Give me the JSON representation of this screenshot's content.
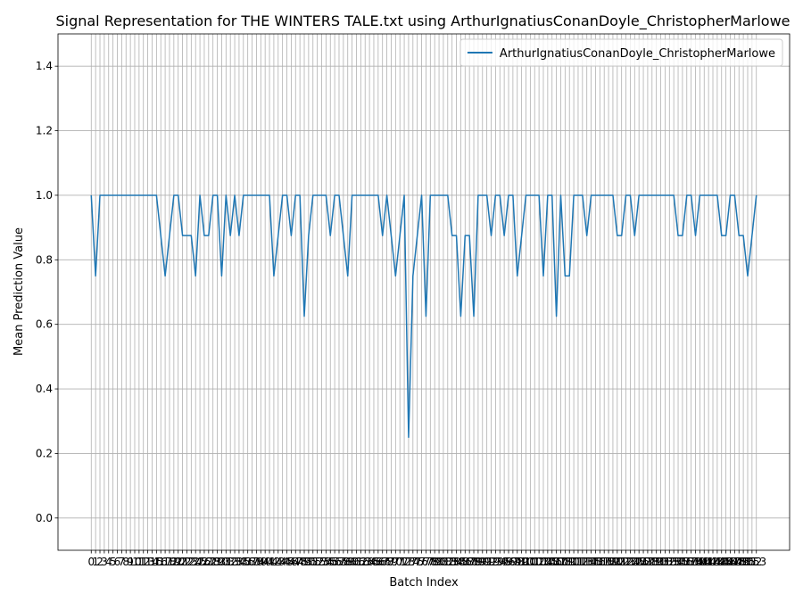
{
  "chart_data": {
    "type": "line",
    "title": "Signal Representation for THE WINTERS TALE.txt using ArthurIgnatiusConanDoyle_ChristopherMarlowe",
    "xlabel": "Batch Index",
    "ylabel": "Mean Prediction Value",
    "x": [
      0,
      1,
      2,
      3,
      4,
      5,
      6,
      7,
      8,
      9,
      10,
      11,
      12,
      13,
      14,
      15,
      16,
      17,
      18,
      19,
      20,
      21,
      22,
      23,
      24,
      25,
      26,
      27,
      28,
      29,
      30,
      31,
      32,
      33,
      34,
      35,
      36,
      37,
      38,
      39,
      40,
      41,
      42,
      43,
      44,
      45,
      46,
      47,
      48,
      49,
      50,
      51,
      52,
      53,
      54,
      55,
      56,
      57,
      58,
      59,
      60,
      61,
      62,
      63,
      64,
      65,
      66,
      67,
      68,
      69,
      70,
      71,
      72,
      73,
      74,
      75,
      76,
      77,
      78,
      79,
      80,
      81,
      82,
      83,
      84,
      85,
      86,
      87,
      88,
      89,
      90,
      91,
      92,
      93,
      94,
      95,
      96,
      97,
      98,
      99,
      100,
      101,
      102,
      103,
      104,
      105,
      106,
      107,
      108,
      109,
      110,
      111,
      112,
      113,
      114,
      115,
      116,
      117,
      118,
      119,
      120,
      121,
      122,
      123,
      124,
      125,
      126,
      127,
      128,
      129,
      130,
      131,
      132,
      133,
      134,
      135,
      136,
      137,
      138,
      139,
      140,
      141,
      142,
      143,
      144,
      145,
      146,
      147,
      148,
      149,
      150,
      151,
      152,
      153
    ],
    "series": [
      {
        "name": "ArthurIgnatiusConanDoyle_ChristopherMarlowe",
        "color": "#1f77b4",
        "values": [
          1,
          0.75,
          1,
          1,
          1,
          1,
          1,
          1,
          1,
          1,
          1,
          1,
          1,
          1,
          1,
          1,
          0.875,
          0.75,
          0.875,
          1,
          1,
          0.875,
          0.875,
          0.875,
          0.75,
          1,
          0.875,
          0.875,
          1,
          1,
          0.75,
          1,
          0.875,
          1,
          0.875,
          1,
          1,
          1,
          1,
          1,
          1,
          1,
          0.75,
          0.875,
          1,
          1,
          0.875,
          1,
          1,
          0.625,
          0.875,
          1,
          1,
          1,
          1,
          0.875,
          1,
          1,
          0.875,
          0.75,
          1,
          1,
          1,
          1,
          1,
          1,
          1,
          0.875,
          1,
          0.875,
          0.75,
          0.875,
          1,
          0.25,
          0.75,
          0.875,
          1,
          0.625,
          1,
          1,
          1,
          1,
          1,
          0.875,
          0.875,
          0.625,
          0.875,
          0.875,
          0.625,
          1,
          1,
          1,
          0.875,
          1,
          1,
          0.875,
          1,
          1,
          0.75,
          0.875,
          1,
          1,
          1,
          1,
          0.75,
          1,
          1,
          0.625,
          1,
          0.75,
          0.75,
          1,
          1,
          1,
          0.875,
          1,
          1,
          1,
          1,
          1,
          1,
          0.875,
          0.875,
          1,
          1,
          0.875,
          1,
          1,
          1,
          1,
          1,
          1,
          1,
          1,
          1,
          0.875,
          0.875,
          1,
          1,
          0.875,
          1,
          1,
          1,
          1,
          1,
          0.875,
          0.875,
          1,
          1,
          0.875,
          0.875,
          0.75,
          0.875,
          1
        ]
      }
    ],
    "xlim": [
      -7.65,
      160.65
    ],
    "xticks": [
      0,
      1,
      2,
      3,
      4,
      5,
      6,
      7,
      8,
      9,
      10,
      11,
      12,
      13,
      14,
      15,
      16,
      17,
      18,
      19,
      20,
      21,
      22,
      23,
      24,
      25,
      26,
      27,
      28,
      29,
      30,
      31,
      32,
      33,
      34,
      35,
      36,
      37,
      38,
      39,
      40,
      41,
      42,
      43,
      44,
      45,
      46,
      47,
      48,
      49,
      50,
      51,
      52,
      53,
      54,
      55,
      56,
      57,
      58,
      59,
      60,
      61,
      62,
      63,
      64,
      65,
      66,
      67,
      68,
      69,
      70,
      71,
      72,
      73,
      74,
      75,
      76,
      77,
      78,
      79,
      80,
      81,
      82,
      83,
      84,
      85,
      86,
      87,
      88,
      89,
      90,
      91,
      92,
      93,
      94,
      95,
      96,
      97,
      98,
      99,
      100,
      101,
      102,
      103,
      104,
      105,
      106,
      107,
      108,
      109,
      110,
      111,
      112,
      113,
      114,
      115,
      116,
      117,
      118,
      119,
      120,
      121,
      122,
      123,
      124,
      125,
      126,
      127,
      128,
      129,
      130,
      131,
      132,
      133,
      134,
      135,
      136,
      137,
      138,
      139,
      140,
      141,
      142,
      143,
      144,
      145,
      146,
      147,
      148,
      149,
      150,
      151,
      152,
      153
    ],
    "ylim": [
      -0.1,
      1.5
    ],
    "yticks": [
      {
        "value": 0,
        "label": "0.0"
      },
      0.2,
      0.4,
      0.6,
      0.8,
      {
        "value": 1,
        "label": "1.0"
      },
      1.2,
      1.4
    ],
    "grid": true,
    "legend": "upper right"
  }
}
